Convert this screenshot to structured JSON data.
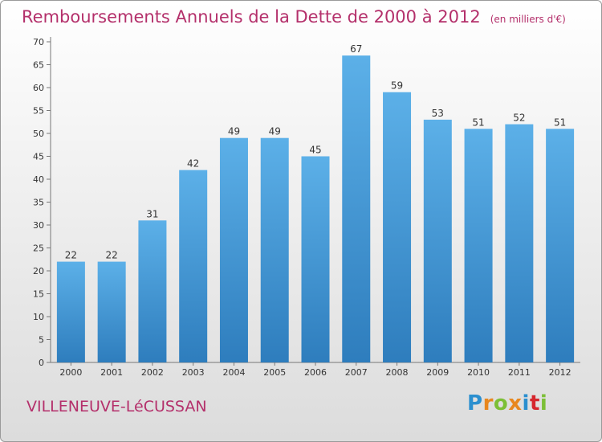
{
  "title": "Remboursements Annuels de la Dette de 2000 à 2012",
  "subtitle": "(en milliers d'€)",
  "commune": "VILLENEUVE-LéCUSSAN",
  "logo": {
    "letters": [
      "P",
      "r",
      "o",
      "x",
      "i",
      "t",
      "i"
    ],
    "colors": [
      "#2b8fcf",
      "#e8871e",
      "#7cbf36",
      "#e8871e",
      "#2b8fcf",
      "#d6272e",
      "#7cbf36"
    ]
  },
  "colors": {
    "bar": "#4ea3dd",
    "bar_dark": "#2f7fbf",
    "title": "#b4306b"
  },
  "chart_data": {
    "type": "bar",
    "categories": [
      "2000",
      "2001",
      "2002",
      "2003",
      "2004",
      "2005",
      "2006",
      "2007",
      "2008",
      "2009",
      "2010",
      "2011",
      "2012"
    ],
    "values": [
      22,
      22,
      31,
      42,
      49,
      49,
      45,
      67,
      59,
      53,
      51,
      52,
      51
    ],
    "ylim": [
      0,
      70
    ],
    "yticks": [
      0,
      5,
      10,
      15,
      20,
      25,
      30,
      35,
      40,
      45,
      50,
      55,
      60,
      65,
      70
    ],
    "data_labels": true,
    "grid": false,
    "legend": false
  }
}
